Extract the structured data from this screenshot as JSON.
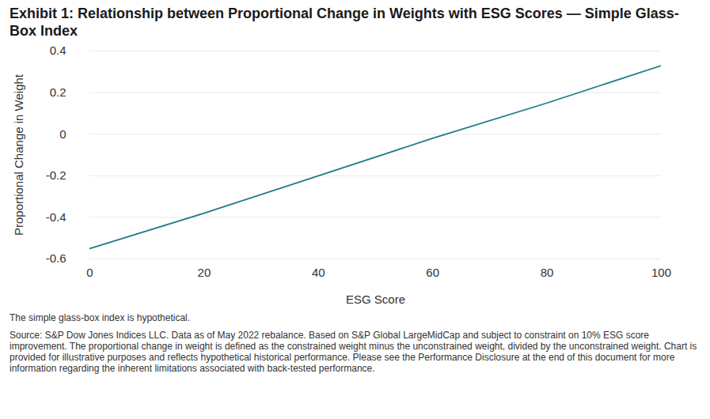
{
  "chart_data": {
    "type": "line",
    "title": "Exhibit 1: Relationship between Proportional Change in Weights with ESG Scores — Simple Glass-Box Index",
    "x_label": "ESG Score",
    "y_label": "Proportional Change in Weight",
    "x": [
      0,
      20,
      40,
      60,
      80,
      100
    ],
    "values": [
      -0.55,
      -0.38,
      -0.2,
      -0.02,
      0.15,
      0.33
    ],
    "color": "#1f7a8c",
    "xlim": [
      0,
      100
    ],
    "ylim": [
      -0.6,
      0.4
    ],
    "xticks": [
      0,
      20,
      40,
      60,
      80,
      100
    ],
    "yticks": [
      -0.6,
      -0.4,
      -0.2,
      0,
      0.2,
      0.4
    ],
    "grid": true,
    "notes": [
      "The simple glass-box index is hypothetical.",
      "Source: S&P Dow Jones Indices LLC. Data as of May 2022 rebalance. Based on S&P Global LargeMidCap and subject to constraint on 10% ESG score improvement. The proportional change in weight is defined as the constrained weight minus the unconstrained weight, divided by the unconstrained weight. Chart is provided for illustrative purposes and reflects hypothetical historical performance. Please see the Performance Disclosure at the end of this document for more information regarding the inherent limitations associated with back-tested performance."
    ]
  }
}
